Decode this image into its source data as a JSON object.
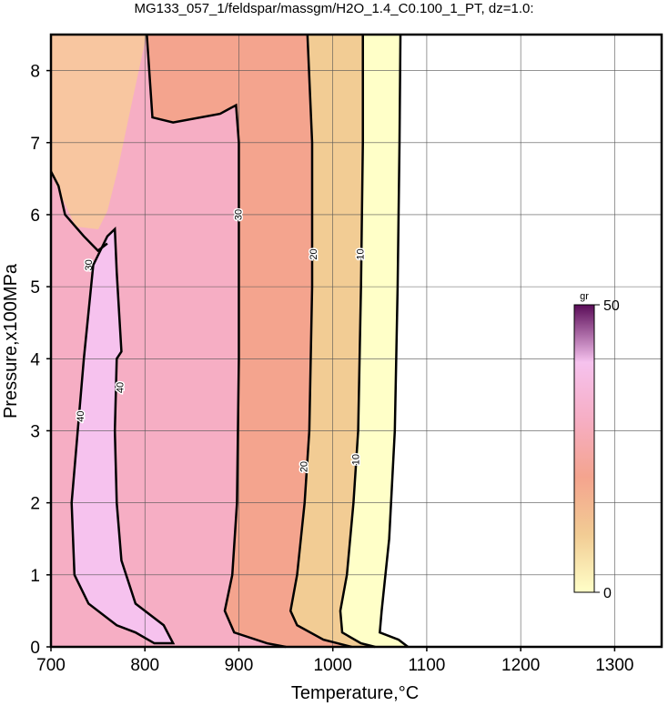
{
  "chart_data": {
    "type": "contour",
    "title": "MG133_057_1/feldspar/massgm/H2O_1.4_C0.100_1_PT, dz=1.0:",
    "x_label": "Temperature,°C",
    "y_label": "Pressure,x100MPa",
    "xlim": [
      700,
      1350
    ],
    "ylim": [
      0,
      8.5
    ],
    "xticks": [
      700,
      800,
      900,
      1000,
      1100,
      1200,
      1300
    ],
    "yticks": [
      0,
      1,
      2,
      3,
      4,
      5,
      6,
      7,
      8
    ],
    "grid": true,
    "colormap": [
      "#ffffc8",
      "#f2cc94",
      "#f4a48e",
      "#f6aec4",
      "#f6c2ee",
      "#5a0c58"
    ],
    "colorbar": {
      "label": "gr",
      "lim": [
        0,
        50
      ],
      "ticks": [
        0,
        50
      ]
    },
    "contours": [
      {
        "level": 0,
        "x": [
          1072,
          1071,
          1069,
          1066,
          1060,
          1052,
          1050,
          1070,
          1080
        ],
        "y": [
          8.5,
          7,
          5,
          3,
          1.5,
          0.5,
          0.2,
          0.1,
          0
        ],
        "labels": []
      },
      {
        "level": 10,
        "x": [
          1032,
          1032,
          1030,
          1027,
          1022,
          1015,
          1008,
          1010,
          1030,
          1045
        ],
        "y": [
          8.5,
          7,
          5,
          3,
          2,
          1,
          0.5,
          0.2,
          0.05,
          0
        ],
        "labels": [
          [
            1030,
            5.45
          ],
          [
            1025,
            2.6
          ]
        ]
      },
      {
        "level": 20,
        "x": [
          973,
          978,
          978,
          975,
          970,
          962,
          955,
          962,
          990,
          1020
        ],
        "y": [
          8.5,
          7,
          5,
          3,
          2,
          1,
          0.5,
          0.3,
          0.1,
          0
        ],
        "labels": [
          [
            980,
            5.45
          ],
          [
            970,
            2.5
          ]
        ]
      },
      {
        "level": 30,
        "x": [
          802,
          808,
          830,
          880,
          897,
          900,
          900,
          898,
          893,
          885,
          895,
          930,
          950
        ],
        "y": [
          8.5,
          7.35,
          7.28,
          7.4,
          7.52,
          7,
          4,
          2,
          1,
          0.5,
          0.2,
          0.05,
          0
        ],
        "labels": [
          [
            900,
            6.0
          ]
        ]
      },
      {
        "level": 30,
        "x": [
          700,
          708,
          715,
          735,
          750,
          760
        ],
        "y": [
          6.6,
          6.4,
          6.0,
          5.7,
          5.5,
          5.6
        ],
        "labels": [
          [
            741,
            5.3
          ]
        ]
      },
      {
        "level": 40,
        "x": [
          745,
          760,
          768,
          770,
          775,
          770,
          768,
          770,
          775,
          790,
          820,
          830,
          810,
          790,
          770,
          740,
          725,
          722,
          735,
          745
        ],
        "y": [
          5.3,
          5.7,
          5.8,
          5.2,
          4.1,
          4.0,
          3.0,
          2.0,
          1.2,
          0.6,
          0.3,
          0.05,
          0.05,
          0.2,
          0.3,
          0.6,
          1.0,
          2.0,
          4.0,
          5.3
        ],
        "labels": [
          [
            774,
            3.6
          ],
          [
            732,
            3.2
          ]
        ]
      }
    ]
  }
}
